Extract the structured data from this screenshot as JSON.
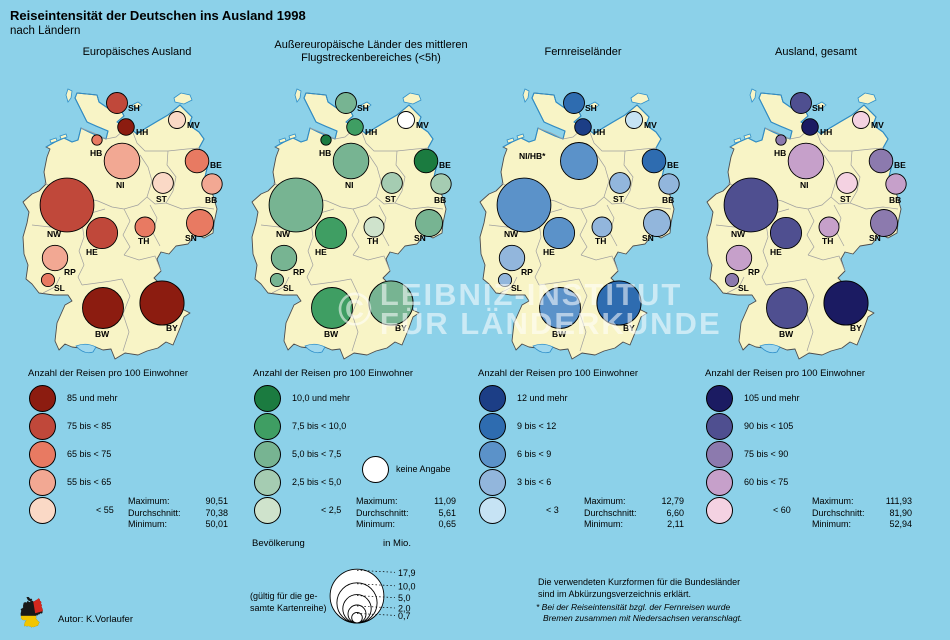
{
  "title": "Reiseintensität der Deutschen ins Ausland 1998",
  "subtitle": "nach Ländern",
  "author": "Autor: K.Vorlaufer",
  "watermark": {
    "symbol": "©",
    "line1": "LEIBNIZ-INSTITUT",
    "line2": "FÜR LÄNDERKUNDE"
  },
  "notes": {
    "kurzformen_1": "Die verwendeten Kurzformen für die Bundesländer",
    "kurzformen_2": "sind im Abkürzungsverzeichnis erklärt.",
    "footnote_1": "* Bei der Reiseintensität bzgl. der Fernreisen wurde",
    "footnote_2": "Bremen zusammen mit Niedersachsen veranschlagt."
  },
  "stats_labels": {
    "max": "Maximum:",
    "avg": "Durchschnitt:",
    "min": "Minimum:"
  },
  "population_legend": {
    "title": "Bevölkerung",
    "unit": "in Mio.",
    "values": [
      "17,9",
      "10,0",
      "5,0",
      "2,0",
      "0,7"
    ],
    "values_mio": [
      17.9,
      10.0,
      5.0,
      2.0,
      0.7
    ],
    "note_1": "(gültig für die ge-",
    "note_2": "samte Kartenreihe)"
  },
  "chart_data": [
    {
      "id": "europaeisches-ausland",
      "type": "proportional-symbol-map",
      "title_lines": [
        "Europäisches Ausland"
      ],
      "unit_label": "Anzahl der Reisen pro 100 Einwohner",
      "classes": [
        {
          "label": "85 und mehr",
          "color": "#8C1C10"
        },
        {
          "label": "75 bis < 85",
          "color": "#C0483A"
        },
        {
          "label": "65 bis < 75",
          "color": "#E87A62"
        },
        {
          "label": "55 bis < 65",
          "color": "#F2A893"
        },
        {
          "label": "< 55",
          "color": "#FAD9C6"
        }
      ],
      "stats": {
        "maximum": "90,51",
        "durchschnitt": "70,38",
        "minimum": "50,01"
      },
      "states": [
        {
          "code": "SH",
          "label": "SH",
          "class": 1,
          "population_mio": 2.76
        },
        {
          "code": "HH",
          "label": "HH",
          "class": 0,
          "population_mio": 1.7
        },
        {
          "code": "MV",
          "label": "MV",
          "class": 4,
          "population_mio": 1.8
        },
        {
          "code": "HB",
          "label": "HB",
          "class": 2,
          "population_mio": 0.67
        },
        {
          "code": "NI",
          "label": "NI",
          "class": 3,
          "population_mio": 7.85
        },
        {
          "code": "BE",
          "label": "BE",
          "class": 2,
          "population_mio": 3.43
        },
        {
          "code": "ST",
          "label": "ST",
          "class": 4,
          "population_mio": 2.67
        },
        {
          "code": "BB",
          "label": "BB",
          "class": 3,
          "population_mio": 2.57
        },
        {
          "code": "NW",
          "label": "NW",
          "class": 1,
          "population_mio": 17.98
        },
        {
          "code": "HE",
          "label": "HE",
          "class": 1,
          "population_mio": 6.03
        },
        {
          "code": "TH",
          "label": "TH",
          "class": 2,
          "population_mio": 2.47
        },
        {
          "code": "SN",
          "label": "SN",
          "class": 2,
          "population_mio": 4.52
        },
        {
          "code": "RP",
          "label": "RP",
          "class": 3,
          "population_mio": 4.02
        },
        {
          "code": "SL",
          "label": "SL",
          "class": 2,
          "population_mio": 1.08
        },
        {
          "code": "BW",
          "label": "BW",
          "class": 0,
          "population_mio": 10.43
        },
        {
          "code": "BY",
          "label": "BY",
          "class": 0,
          "population_mio": 12.07
        }
      ]
    },
    {
      "id": "aussereuropaeische-laender",
      "type": "proportional-symbol-map",
      "title_lines": [
        "Außereuropäische Länder des mittleren",
        "Flugstreckenbereiches (<5h)"
      ],
      "unit_label": "Anzahl der Reisen pro 100 Einwohner",
      "classes": [
        {
          "label": "10,0 und mehr",
          "color": "#1B7B40"
        },
        {
          "label": "7,5 bis < 10,0",
          "color": "#3F9E63"
        },
        {
          "label": "5,0 bis <  7,5",
          "color": "#77B492"
        },
        {
          "label": "2,5 bis <  5,0",
          "color": "#A5CCB2"
        },
        {
          "label": "<  2,5",
          "color": "#CFE3CC"
        }
      ],
      "no_data": {
        "label": "keine Angabe",
        "color": "#FFFFFF"
      },
      "stats": {
        "maximum": "11,09",
        "durchschnitt": "5,61",
        "minimum": "0,65"
      },
      "states": [
        {
          "code": "SH",
          "label": "SH",
          "class": 2,
          "population_mio": 2.76
        },
        {
          "code": "HH",
          "label": "HH",
          "class": 1,
          "population_mio": 1.7
        },
        {
          "code": "MV",
          "label": "MV",
          "class": "na",
          "population_mio": 1.8
        },
        {
          "code": "HB",
          "label": "HB",
          "class": 0,
          "population_mio": 0.67
        },
        {
          "code": "NI",
          "label": "NI",
          "class": 2,
          "population_mio": 7.85
        },
        {
          "code": "BE",
          "label": "BE",
          "class": 0,
          "population_mio": 3.43
        },
        {
          "code": "ST",
          "label": "ST",
          "class": 3,
          "population_mio": 2.67
        },
        {
          "code": "BB",
          "label": "BB",
          "class": 3,
          "population_mio": 2.57
        },
        {
          "code": "NW",
          "label": "NW",
          "class": 2,
          "population_mio": 17.98
        },
        {
          "code": "HE",
          "label": "HE",
          "class": 1,
          "population_mio": 6.03
        },
        {
          "code": "TH",
          "label": "TH",
          "class": 4,
          "population_mio": 2.47
        },
        {
          "code": "SN",
          "label": "SN",
          "class": 2,
          "population_mio": 4.52
        },
        {
          "code": "RP",
          "label": "RP",
          "class": 2,
          "population_mio": 4.02
        },
        {
          "code": "SL",
          "label": "SL",
          "class": 2,
          "population_mio": 1.08
        },
        {
          "code": "BW",
          "label": "BW",
          "class": 1,
          "population_mio": 10.43
        },
        {
          "code": "BY",
          "label": "BY",
          "class": 2,
          "population_mio": 12.07
        }
      ]
    },
    {
      "id": "fernreiselaender",
      "type": "proportional-symbol-map",
      "title_lines": [
        "Fernreiseländer"
      ],
      "unit_label": "Anzahl der Reisen pro 100 Einwohner",
      "classes": [
        {
          "label": "12 und mehr",
          "color": "#1C3E86"
        },
        {
          "label": "9 bis < 12",
          "color": "#2E6CB0"
        },
        {
          "label": "6 bis <  9",
          "color": "#5B92C9"
        },
        {
          "label": "3 bis <  6",
          "color": "#92B6DC"
        },
        {
          "label": "<  3",
          "color": "#C6E3F4"
        }
      ],
      "stats": {
        "maximum": "12,79",
        "durchschnitt": "6,60",
        "minimum": "2,11"
      },
      "states": [
        {
          "code": "SH",
          "label": "SH",
          "class": 1,
          "population_mio": 2.76
        },
        {
          "code": "HH",
          "label": "HH",
          "class": 0,
          "population_mio": 1.7
        },
        {
          "code": "MV",
          "label": "MV",
          "class": 4,
          "population_mio": 1.8
        },
        {
          "code": "NI",
          "label": "NI/HB*",
          "class": 2,
          "population_mio": 8.5
        },
        {
          "code": "BE",
          "label": "BE",
          "class": 1,
          "population_mio": 3.43
        },
        {
          "code": "ST",
          "label": "ST",
          "class": 3,
          "population_mio": 2.67
        },
        {
          "code": "BB",
          "label": "BB",
          "class": 3,
          "population_mio": 2.57
        },
        {
          "code": "NW",
          "label": "NW",
          "class": 2,
          "population_mio": 17.98
        },
        {
          "code": "HE",
          "label": "HE",
          "class": 2,
          "population_mio": 6.03
        },
        {
          "code": "TH",
          "label": "TH",
          "class": 3,
          "population_mio": 2.47
        },
        {
          "code": "SN",
          "label": "SN",
          "class": 3,
          "population_mio": 4.52
        },
        {
          "code": "RP",
          "label": "RP",
          "class": 3,
          "population_mio": 4.02
        },
        {
          "code": "SL",
          "label": "SL",
          "class": 3,
          "population_mio": 1.08
        },
        {
          "code": "BW",
          "label": "BW",
          "class": 2,
          "population_mio": 10.43
        },
        {
          "code": "BY",
          "label": "BY",
          "class": 1,
          "population_mio": 12.07
        }
      ]
    },
    {
      "id": "ausland-gesamt",
      "type": "proportional-symbol-map",
      "title_lines": [
        "Ausland, gesamt"
      ],
      "unit_label": "Anzahl der Reisen pro 100 Einwohner",
      "classes": [
        {
          "label": "105 und mehr",
          "color": "#1B1B62"
        },
        {
          "label": "90 bis < 105",
          "color": "#4F4F90"
        },
        {
          "label": "75 bis <  90",
          "color": "#8C7AAE"
        },
        {
          "label": "60 bis <  75",
          "color": "#C6A0CA"
        },
        {
          "label": "<  60",
          "color": "#F4D2E2"
        }
      ],
      "stats": {
        "maximum": "111,93",
        "durchschnitt": "81,90",
        "minimum": "52,94"
      },
      "states": [
        {
          "code": "SH",
          "label": "SH",
          "class": 1,
          "population_mio": 2.76
        },
        {
          "code": "HH",
          "label": "HH",
          "class": 0,
          "population_mio": 1.7
        },
        {
          "code": "MV",
          "label": "MV",
          "class": 4,
          "population_mio": 1.8
        },
        {
          "code": "HB",
          "label": "HB",
          "class": 2,
          "population_mio": 0.67
        },
        {
          "code": "NI",
          "label": "NI",
          "class": 3,
          "population_mio": 7.85
        },
        {
          "code": "BE",
          "label": "BE",
          "class": 2,
          "population_mio": 3.43
        },
        {
          "code": "ST",
          "label": "ST",
          "class": 4,
          "population_mio": 2.67
        },
        {
          "code": "BB",
          "label": "BB",
          "class": 3,
          "population_mio": 2.57
        },
        {
          "code": "NW",
          "label": "NW",
          "class": 1,
          "population_mio": 17.98
        },
        {
          "code": "HE",
          "label": "HE",
          "class": 1,
          "population_mio": 6.03
        },
        {
          "code": "TH",
          "label": "TH",
          "class": 3,
          "population_mio": 2.47
        },
        {
          "code": "SN",
          "label": "SN",
          "class": 2,
          "population_mio": 4.52
        },
        {
          "code": "RP",
          "label": "RP",
          "class": 3,
          "population_mio": 4.02
        },
        {
          "code": "SL",
          "label": "SL",
          "class": 2,
          "population_mio": 1.08
        },
        {
          "code": "BW",
          "label": "BW",
          "class": 1,
          "population_mio": 10.43
        },
        {
          "code": "BY",
          "label": "BY",
          "class": 0,
          "population_mio": 12.07
        }
      ]
    }
  ]
}
